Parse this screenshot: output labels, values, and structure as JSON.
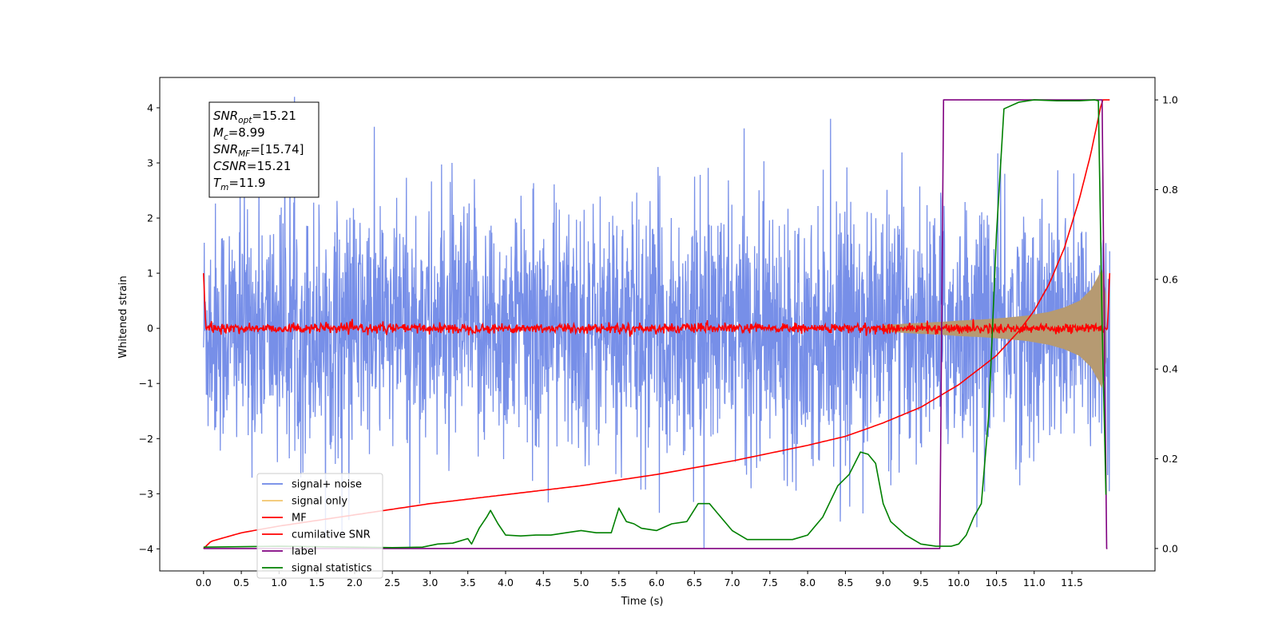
{
  "chart_data": {
    "type": "line",
    "title": "",
    "xlabel": "Time (s)",
    "ylabel": "Whitened strain",
    "xlim": [
      -0.58,
      12.6
    ],
    "ylim_left": [
      -4.4,
      4.55
    ],
    "ylim_right": [
      -0.05,
      1.05
    ],
    "x_ticks": [
      0.0,
      0.5,
      1.0,
      1.5,
      2.0,
      2.5,
      3.0,
      3.5,
      4.0,
      4.5,
      5.0,
      5.5,
      6.0,
      6.5,
      7.0,
      7.5,
      8.0,
      8.5,
      9.0,
      9.5,
      10.0,
      10.5,
      11.0,
      11.5
    ],
    "x_tick_labels": [
      "0.0",
      "0.5",
      "1.0",
      "1.5",
      "2.0",
      "2.5",
      "3.0",
      "3.5",
      "4.0",
      "4.5",
      "5.0",
      "5.5",
      "6.0",
      "6.5",
      "7.0",
      "7.5",
      "8.0",
      "8.5",
      "9.0",
      "9.5",
      "10.0",
      "10.5",
      "11.0",
      "11.5"
    ],
    "y_left_ticks": [
      -4,
      -3,
      -2,
      -1,
      0,
      1,
      2,
      3,
      4
    ],
    "y_left_tick_labels": [
      "−4",
      "−3",
      "−2",
      "−1",
      "0",
      "1",
      "2",
      "3",
      "4"
    ],
    "y_right_ticks": [
      0.0,
      0.2,
      0.4,
      0.6,
      0.8,
      1.0
    ],
    "y_right_tick_labels": [
      "0.0",
      "0.2",
      "0.4",
      "0.6",
      "0.8",
      "1.0"
    ],
    "grid": false,
    "legend_position": "lower-left",
    "series": [
      {
        "name": "signal+ noise",
        "axis": "left",
        "color": "#6b86e6",
        "style": "noise",
        "x_range": [
          0.0,
          12.0
        ],
        "typical_amplitude": 1.8,
        "peak_max": 4.2,
        "peak_min": -4.0
      },
      {
        "name": "signal only",
        "axis": "left",
        "color": "#f2c46b",
        "fill_color": "#b69a72",
        "style": "envelope",
        "envelope_x": [
          9.0,
          9.5,
          9.8,
          10.0,
          10.3,
          10.6,
          10.9,
          11.2,
          11.4,
          11.6,
          11.75,
          11.85,
          11.9,
          11.95
        ],
        "envelope_amp": [
          0.06,
          0.1,
          0.12,
          0.14,
          0.16,
          0.19,
          0.23,
          0.3,
          0.38,
          0.5,
          0.7,
          0.95,
          1.1,
          0.6
        ]
      },
      {
        "name": "MF",
        "axis": "left",
        "color": "#ff0000",
        "style": "mf",
        "x_range": [
          0.0,
          12.0
        ],
        "start_value": 1.0,
        "noise_amplitude": 0.08,
        "end_value": 1.0
      },
      {
        "name": "cumilative SNR",
        "axis": "right",
        "color": "#ff0000",
        "x": [
          0.0,
          0.1,
          0.5,
          1.0,
          2.0,
          3.0,
          4.0,
          5.0,
          6.0,
          7.0,
          8.0,
          8.5,
          9.0,
          9.5,
          10.0,
          10.5,
          10.8,
          11.0,
          11.2,
          11.4,
          11.6,
          11.75,
          11.85,
          11.9,
          11.95,
          12.0
        ],
        "y": [
          0.0,
          0.016,
          0.035,
          0.05,
          0.075,
          0.1,
          0.12,
          0.14,
          0.165,
          0.195,
          0.23,
          0.25,
          0.28,
          0.315,
          0.365,
          0.43,
          0.485,
          0.53,
          0.59,
          0.67,
          0.78,
          0.88,
          0.96,
          1.0,
          1.0,
          1.0
        ]
      },
      {
        "name": "label",
        "axis": "right",
        "color": "#800080",
        "x": [
          0.0,
          9.75,
          9.8,
          11.85,
          11.9,
          11.92,
          11.96,
          11.97
        ],
        "y": [
          0.0,
          0.0,
          1.0,
          1.0,
          1.0,
          0.65,
          0.0,
          0.0
        ]
      },
      {
        "name": "signal statistics",
        "axis": "right",
        "color": "#008000",
        "x": [
          0.0,
          1.0,
          2.0,
          2.5,
          2.9,
          3.1,
          3.3,
          3.5,
          3.55,
          3.65,
          3.75,
          3.8,
          3.9,
          4.0,
          4.2,
          4.4,
          4.6,
          4.8,
          5.0,
          5.2,
          5.4,
          5.5,
          5.6,
          5.7,
          5.8,
          6.0,
          6.2,
          6.4,
          6.55,
          6.7,
          6.8,
          7.0,
          7.2,
          7.5,
          7.8,
          8.0,
          8.2,
          8.4,
          8.55,
          8.7,
          8.8,
          8.9,
          9.0,
          9.1,
          9.3,
          9.5,
          9.7,
          9.9,
          10.0,
          10.1,
          10.2,
          10.3,
          10.4,
          10.5,
          10.6,
          10.8,
          11.0,
          11.3,
          11.6,
          11.8,
          11.85,
          11.9,
          11.95
        ],
        "y": [
          0.003,
          0.005,
          0.003,
          0.002,
          0.003,
          0.01,
          0.012,
          0.022,
          0.01,
          0.045,
          0.07,
          0.085,
          0.055,
          0.03,
          0.028,
          0.03,
          0.03,
          0.035,
          0.04,
          0.035,
          0.035,
          0.09,
          0.06,
          0.055,
          0.045,
          0.04,
          0.055,
          0.06,
          0.1,
          0.1,
          0.08,
          0.04,
          0.02,
          0.02,
          0.02,
          0.03,
          0.07,
          0.14,
          0.165,
          0.215,
          0.21,
          0.19,
          0.1,
          0.06,
          0.03,
          0.01,
          0.005,
          0.005,
          0.01,
          0.03,
          0.07,
          0.1,
          0.3,
          0.7,
          0.98,
          0.995,
          1.0,
          0.998,
          0.998,
          1.0,
          0.998,
          0.5,
          0.12
        ]
      }
    ],
    "info_box": [
      {
        "base": "SNR",
        "sub": "opt",
        "value": "=15.21"
      },
      {
        "base": "M",
        "sub": "c",
        "value": "=8.99"
      },
      {
        "base": "SNR",
        "sub": "MF",
        "value": "=[15.74]"
      },
      {
        "base": "CSNR",
        "sub": "",
        "value": "=15.21"
      },
      {
        "base": "T",
        "sub": "m",
        "value": "=11.9"
      }
    ]
  }
}
